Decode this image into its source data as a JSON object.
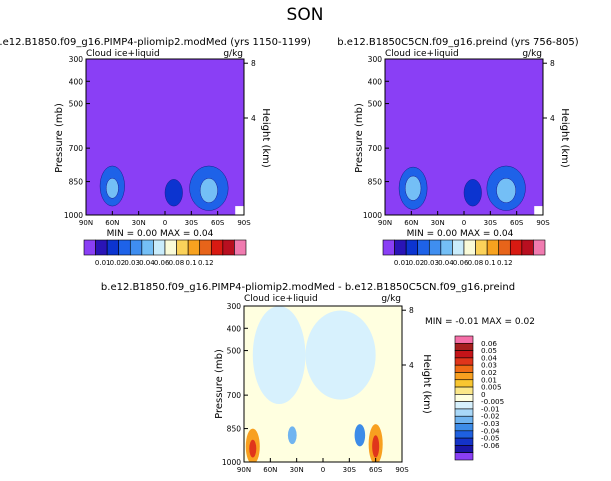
{
  "figure_title": "SON",
  "colors": {
    "purple": "#8a3ff5",
    "level_colors": [
      "#8a3ff5",
      "#2a14b6",
      "#0c34d0",
      "#1e62e8",
      "#3f8ef0",
      "#74bff6",
      "#c9ecfb",
      "#fafbd8",
      "#fbd25a",
      "#f7a21f",
      "#e7641a",
      "#d81a12",
      "#b80f20",
      "#f07bb0"
    ],
    "diff_colors": [
      "#8a3ff5",
      "#1a16a6",
      "#1433c8",
      "#1e60e0",
      "#3d8ce8",
      "#70b4f0",
      "#a9d8f8",
      "#d7f1fd",
      "#ffffe0",
      "#fbe789",
      "#f9c630",
      "#f8a020",
      "#f06b15",
      "#e0351b",
      "#c51419",
      "#a61e1e",
      "#f56fa8"
    ]
  },
  "panels": {
    "left": {
      "title": "b.e12.B1850.f09_g16.PIMP4-pliomip2.modMed (yrs 1150-1199)",
      "var_label": "Cloud ice+liquid",
      "units": "g/kg",
      "min_max": "MIN =   0.00   MAX =   0.04",
      "y_axis_label": "Pressure (mb)",
      "right_axis_label": "Height (km)"
    },
    "right": {
      "title": "b.e12.B1850C5CN.f09_g16.preind (yrs 756-805)",
      "var_label": "Cloud ice+liquid",
      "units": "g/kg",
      "min_max": "MIN =   0.00   MAX =   0.04",
      "y_axis_label": "Pressure (mb)",
      "right_axis_label": "Height (km)"
    },
    "diff": {
      "title": "b.e12.B1850.f09_g16.PIMP4-pliomip2.modMed - b.e12.B1850C5CN.f09_g16.preind",
      "var_label": "Cloud ice+liquid",
      "units": "g/kg",
      "min_max": "MIN =   -0.01   MAX =    0.02",
      "y_axis_label": "Pressure (mb)",
      "right_axis_label": "Height (km)"
    }
  },
  "chart_data": [
    {
      "type": "heatmap",
      "panel": "left",
      "title": "b.e12.B1850.f09_g16.PIMP4-pliomip2.modMed (yrs 1150-1199)",
      "x_ticks": [
        "90N",
        "60N",
        "30N",
        "0",
        "30S",
        "60S",
        "90S"
      ],
      "x_tick_values": [
        90,
        60,
        30,
        0,
        -30,
        -60,
        -90
      ],
      "y_ticks": [
        "300",
        "400",
        "500",
        "700",
        "850",
        "1000"
      ],
      "y_tick_values": [
        300,
        400,
        500,
        700,
        850,
        1000
      ],
      "right_ticks": [
        "8",
        "4"
      ],
      "right_tick_values": [
        8,
        4
      ],
      "ylabel": "Pressure (mb)",
      "right_label": "Height (km)",
      "levels": [
        "0.01",
        "0.02",
        "0.03",
        "0.04",
        "0.06",
        "0.08",
        "0.1",
        "0.12"
      ],
      "blobs": [
        {
          "lat": 60,
          "p": 870,
          "rx": 14,
          "ry": 90,
          "level": 3
        },
        {
          "lat": 60,
          "p": 880,
          "rx": 7,
          "ry": 45,
          "level": 5
        },
        {
          "lat": -50,
          "p": 880,
          "rx": 22,
          "ry": 100,
          "level": 3
        },
        {
          "lat": -50,
          "p": 890,
          "rx": 10,
          "ry": 55,
          "level": 5
        },
        {
          "lat": -10,
          "p": 900,
          "rx": 10,
          "ry": 60,
          "level": 2
        }
      ]
    },
    {
      "type": "heatmap",
      "panel": "right",
      "title": "b.e12.B1850C5CN.f09_g16.preind (yrs 756-805)",
      "x_ticks": [
        "90N",
        "60N",
        "30N",
        "0",
        "30S",
        "60S",
        "90S"
      ],
      "x_tick_values": [
        90,
        60,
        30,
        0,
        -30,
        -60,
        -90
      ],
      "y_ticks": [
        "300",
        "400",
        "500",
        "700",
        "850",
        "1000"
      ],
      "y_tick_values": [
        300,
        400,
        500,
        700,
        850,
        1000
      ],
      "right_ticks": [
        "8",
        "4"
      ],
      "right_tick_values": [
        8,
        4
      ],
      "ylabel": "Pressure (mb)",
      "right_label": "Height (km)",
      "levels": [
        "0.01",
        "0.02",
        "0.03",
        "0.04",
        "0.06",
        "0.08",
        "0.1",
        "0.12"
      ],
      "blobs": [
        {
          "lat": 58,
          "p": 880,
          "rx": 16,
          "ry": 95,
          "level": 3
        },
        {
          "lat": 58,
          "p": 880,
          "rx": 9,
          "ry": 55,
          "level": 5
        },
        {
          "lat": -48,
          "p": 880,
          "rx": 22,
          "ry": 100,
          "level": 3
        },
        {
          "lat": -48,
          "p": 890,
          "rx": 11,
          "ry": 55,
          "level": 5
        },
        {
          "lat": -10,
          "p": 900,
          "rx": 10,
          "ry": 60,
          "level": 2
        }
      ]
    },
    {
      "type": "heatmap",
      "panel": "diff",
      "title": "b.e12.B1850.f09_g16.PIMP4-pliomip2.modMed - b.e12.B1850C5CN.f09_g16.preind",
      "x_ticks": [
        "90N",
        "60N",
        "30N",
        "0",
        "30S",
        "60S",
        "90S"
      ],
      "x_tick_values": [
        90,
        60,
        30,
        0,
        -30,
        -60,
        -90
      ],
      "y_ticks": [
        "300",
        "400",
        "500",
        "700",
        "850",
        "1000"
      ],
      "y_tick_values": [
        300,
        400,
        500,
        700,
        850,
        1000
      ],
      "right_ticks": [
        "8",
        "4"
      ],
      "right_tick_values": [
        8,
        4
      ],
      "ylabel": "Pressure (mb)",
      "right_label": "Height (km)",
      "levels": [
        "0.06",
        "0.05",
        "0.04",
        "0.03",
        "0.02",
        "0.01",
        "0.005",
        "0",
        "-0.005",
        "-0.01",
        "-0.02",
        "-0.03",
        "-0.04",
        "-0.05",
        "-0.06"
      ],
      "blobs": [
        {
          "lat": 50,
          "p": 520,
          "rx": 30,
          "ry": 220,
          "level": 7
        },
        {
          "lat": -20,
          "p": 520,
          "rx": 40,
          "ry": 200,
          "level": 7
        },
        {
          "lat": 80,
          "p": 930,
          "rx": 8,
          "ry": 80,
          "level": 11
        },
        {
          "lat": 80,
          "p": 940,
          "rx": 4,
          "ry": 40,
          "level": 13
        },
        {
          "lat": -60,
          "p": 920,
          "rx": 8,
          "ry": 90,
          "level": 11
        },
        {
          "lat": -60,
          "p": 930,
          "rx": 4,
          "ry": 50,
          "level": 13
        },
        {
          "lat": -42,
          "p": 880,
          "rx": 6,
          "ry": 50,
          "level": 4
        },
        {
          "lat": 35,
          "p": 880,
          "rx": 5,
          "ry": 40,
          "level": 5
        }
      ]
    }
  ]
}
